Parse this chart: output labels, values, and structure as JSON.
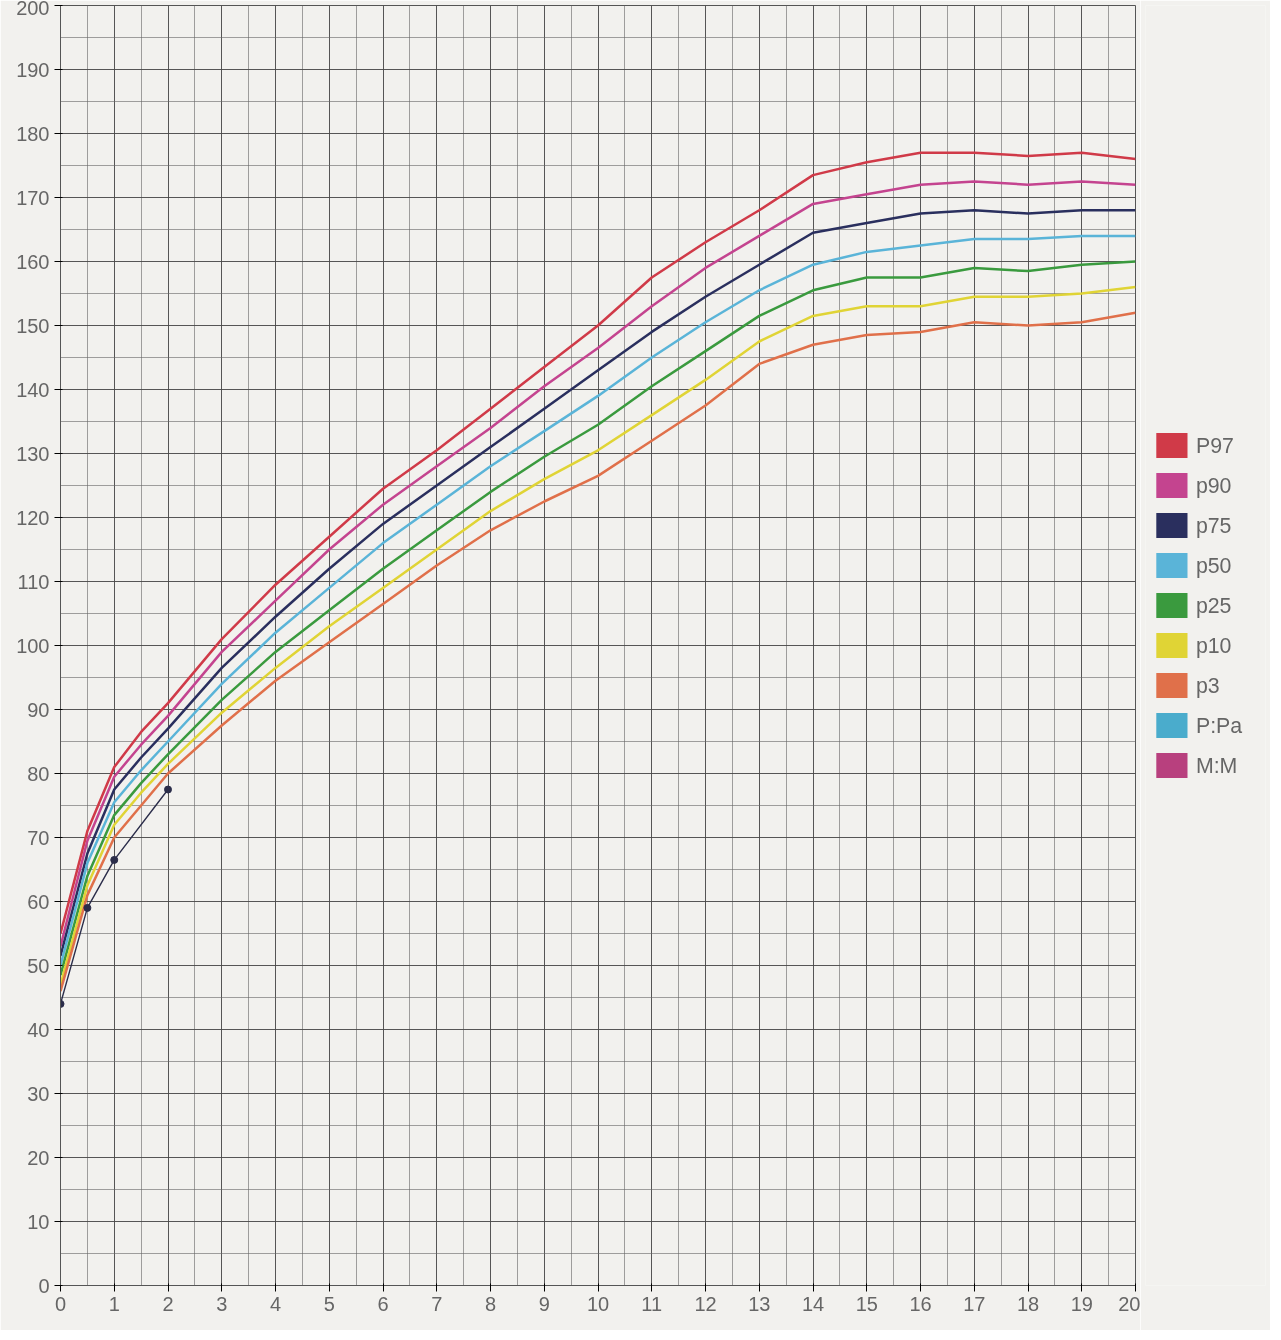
{
  "chart_data": {
    "type": "line",
    "x": [
      0,
      0.5,
      1,
      1.5,
      2,
      3,
      4,
      5,
      6,
      7,
      8,
      9,
      10,
      11,
      12,
      13,
      14,
      15,
      16,
      17,
      18,
      19,
      20
    ],
    "xlim": [
      0,
      20
    ],
    "xticks": [
      0,
      1,
      2,
      3,
      4,
      5,
      6,
      7,
      8,
      9,
      10,
      11,
      12,
      13,
      14,
      15,
      16,
      17,
      18,
      19,
      20
    ],
    "ylim": [
      0,
      200
    ],
    "yticks": [
      0,
      10,
      20,
      30,
      40,
      50,
      60,
      70,
      80,
      90,
      100,
      110,
      120,
      130,
      140,
      150,
      160,
      170,
      180,
      190,
      200
    ],
    "grid": true,
    "legend": "right",
    "marker": "none",
    "line_style": "solid",
    "series": [
      {
        "name": "P97",
        "color": "#d03a48",
        "values": [
          55,
          71,
          81,
          86.5,
          91,
          101,
          109.5,
          117,
          124.5,
          130.5,
          137,
          143.5,
          150,
          157.5,
          163,
          168,
          173.5,
          175.5,
          177,
          177,
          176.5,
          177,
          176
        ]
      },
      {
        "name": "p90",
        "color": "#c4448f",
        "values": [
          53,
          69.5,
          79.5,
          84.5,
          89,
          99,
          107,
          115,
          122,
          128,
          134,
          140.5,
          146.5,
          153,
          159,
          164,
          169,
          170.5,
          172,
          172.5,
          172,
          172.5,
          172
        ]
      },
      {
        "name": "p75",
        "color": "#2a2f5e",
        "values": [
          51.5,
          67.5,
          77.5,
          82.5,
          87,
          96.5,
          104.5,
          112,
          119,
          125,
          131,
          137,
          143,
          149,
          154.5,
          159.5,
          164.5,
          166,
          167.5,
          168,
          167.5,
          168,
          168
        ]
      },
      {
        "name": "p50",
        "color": "#5ab4d8",
        "values": [
          50,
          66,
          75.5,
          80.5,
          85,
          94,
          102,
          109,
          116,
          122,
          128,
          133.5,
          139,
          145,
          150.5,
          155.5,
          159.5,
          161.5,
          162.5,
          163.5,
          163.5,
          164,
          164
        ]
      },
      {
        "name": "p25",
        "color": "#3a9a3e",
        "values": [
          48.5,
          64,
          73.5,
          78.5,
          83,
          91.5,
          99,
          105.5,
          112,
          118,
          124,
          129.5,
          134.5,
          140.5,
          146,
          151.5,
          155.5,
          157.5,
          157.5,
          159,
          158.5,
          159.5,
          160
        ]
      },
      {
        "name": "p10",
        "color": "#e0d435",
        "values": [
          47,
          62.5,
          72,
          77,
          81.5,
          89.5,
          96.5,
          103,
          109,
          115,
          121,
          126,
          130.5,
          136,
          141.5,
          147.5,
          151.5,
          153,
          153,
          154.5,
          154.5,
          155,
          156
        ]
      },
      {
        "name": "p3",
        "color": "#e0704a",
        "values": [
          46,
          61,
          70,
          75,
          80,
          87.5,
          94.5,
          100.5,
          106.5,
          112.5,
          118,
          122.5,
          126.5,
          132,
          137.5,
          144,
          147,
          148.5,
          149,
          150.5,
          150,
          150.5,
          152
        ]
      },
      {
        "name": "P:Pa",
        "color": "#4aaccc",
        "values": [
          null,
          null,
          null,
          null,
          null,
          null,
          null,
          null,
          null,
          null,
          null,
          null,
          null,
          null,
          null,
          null,
          null,
          null,
          null,
          null,
          null,
          null,
          null
        ]
      },
      {
        "name": "M:M",
        "color": "#b8407e",
        "values": [
          null,
          null,
          null,
          null,
          null,
          null,
          null,
          null,
          null,
          null,
          null,
          null,
          null,
          null,
          null,
          null,
          null,
          null,
          null,
          null,
          null,
          null,
          null
        ]
      },
      {
        "color": "#2b2d4a",
        "marker": "circle",
        "x": [
          0,
          0.5,
          1,
          2
        ],
        "values": [
          44,
          59,
          66.5,
          77.5
        ]
      }
    ]
  }
}
